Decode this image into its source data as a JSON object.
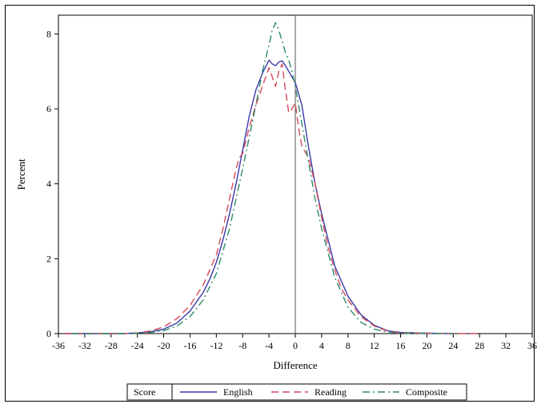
{
  "chart_data": {
    "type": "line",
    "title": "",
    "xlabel": "Difference",
    "ylabel": "Percent",
    "xlim": [
      -36,
      36
    ],
    "ylim": [
      0,
      8.5
    ],
    "xticks": [
      -36,
      -32,
      -28,
      -24,
      -20,
      -16,
      -12,
      -8,
      -4,
      0,
      4,
      8,
      12,
      16,
      20,
      24,
      28,
      32,
      36
    ],
    "yticks": [
      0,
      2,
      4,
      6,
      8
    ],
    "reference_line_x": 0,
    "legend": {
      "title": "Score",
      "placement": "bottom"
    },
    "series": [
      {
        "name": "English",
        "color": "#3a3aa8",
        "dash": "solid",
        "x": [
          -35,
          -30,
          -26,
          -24,
          -22,
          -20,
          -18,
          -16,
          -14,
          -13,
          -12,
          -11,
          -10,
          -9,
          -8,
          -7,
          -6,
          -5,
          -4,
          -3.5,
          -3,
          -2.5,
          -2,
          -1.5,
          -1,
          -0.5,
          0,
          0.5,
          1,
          2,
          3,
          4,
          5,
          6,
          7,
          8,
          10,
          12,
          14,
          16,
          20,
          24
        ],
        "y": [
          0,
          0,
          0,
          0.02,
          0.05,
          0.12,
          0.28,
          0.6,
          1.1,
          1.45,
          1.9,
          2.5,
          3.2,
          4.0,
          4.9,
          5.8,
          6.5,
          6.95,
          7.3,
          7.2,
          7.15,
          7.25,
          7.28,
          7.15,
          7.0,
          6.85,
          6.7,
          6.4,
          6.1,
          5.0,
          4.0,
          3.2,
          2.5,
          1.8,
          1.4,
          1.0,
          0.5,
          0.22,
          0.08,
          0.03,
          0.01,
          0
        ]
      },
      {
        "name": "Reading",
        "color": "#d44a5a",
        "dash": "long",
        "x": [
          -35,
          -30,
          -26,
          -24,
          -22,
          -20,
          -18,
          -16,
          -14,
          -12,
          -11,
          -10,
          -9,
          -8.5,
          -8,
          -7,
          -6,
          -5,
          -4,
          -3.5,
          -3,
          -2.5,
          -2,
          -1.5,
          -1,
          -0.5,
          0,
          0.5,
          1,
          2,
          3,
          4,
          5,
          6,
          7,
          8,
          10,
          12,
          14,
          16,
          20,
          24,
          28
        ],
        "y": [
          0,
          0,
          0,
          0.02,
          0.07,
          0.18,
          0.4,
          0.75,
          1.3,
          2.1,
          2.8,
          3.6,
          4.4,
          4.7,
          4.8,
          5.5,
          6.1,
          6.6,
          7.1,
          6.85,
          6.6,
          7.0,
          7.2,
          6.5,
          5.9,
          6.0,
          6.15,
          5.5,
          5.0,
          4.7,
          4.0,
          3.1,
          2.3,
          1.7,
          1.2,
          0.9,
          0.45,
          0.2,
          0.07,
          0.02,
          0.01,
          0,
          0
        ]
      },
      {
        "name": "Composite",
        "color": "#2e8a6a",
        "dash": "dashdot",
        "x": [
          -34,
          -30,
          -26,
          -24,
          -22,
          -20,
          -18,
          -16,
          -14,
          -12,
          -10,
          -8,
          -6,
          -5,
          -4,
          -3.5,
          -3,
          -2.5,
          -2,
          -1.5,
          -1,
          -0.5,
          0,
          1,
          2,
          3,
          4,
          6,
          8,
          10,
          12,
          14,
          16,
          20,
          24
        ],
        "y": [
          0,
          0,
          0,
          0.01,
          0.03,
          0.08,
          0.2,
          0.45,
          0.9,
          1.6,
          2.8,
          4.4,
          6.1,
          7.0,
          7.7,
          8.1,
          8.3,
          8.1,
          7.8,
          7.5,
          7.3,
          7.0,
          6.6,
          5.6,
          4.6,
          3.6,
          2.8,
          1.5,
          0.7,
          0.3,
          0.12,
          0.04,
          0.01,
          0,
          0
        ]
      }
    ]
  }
}
